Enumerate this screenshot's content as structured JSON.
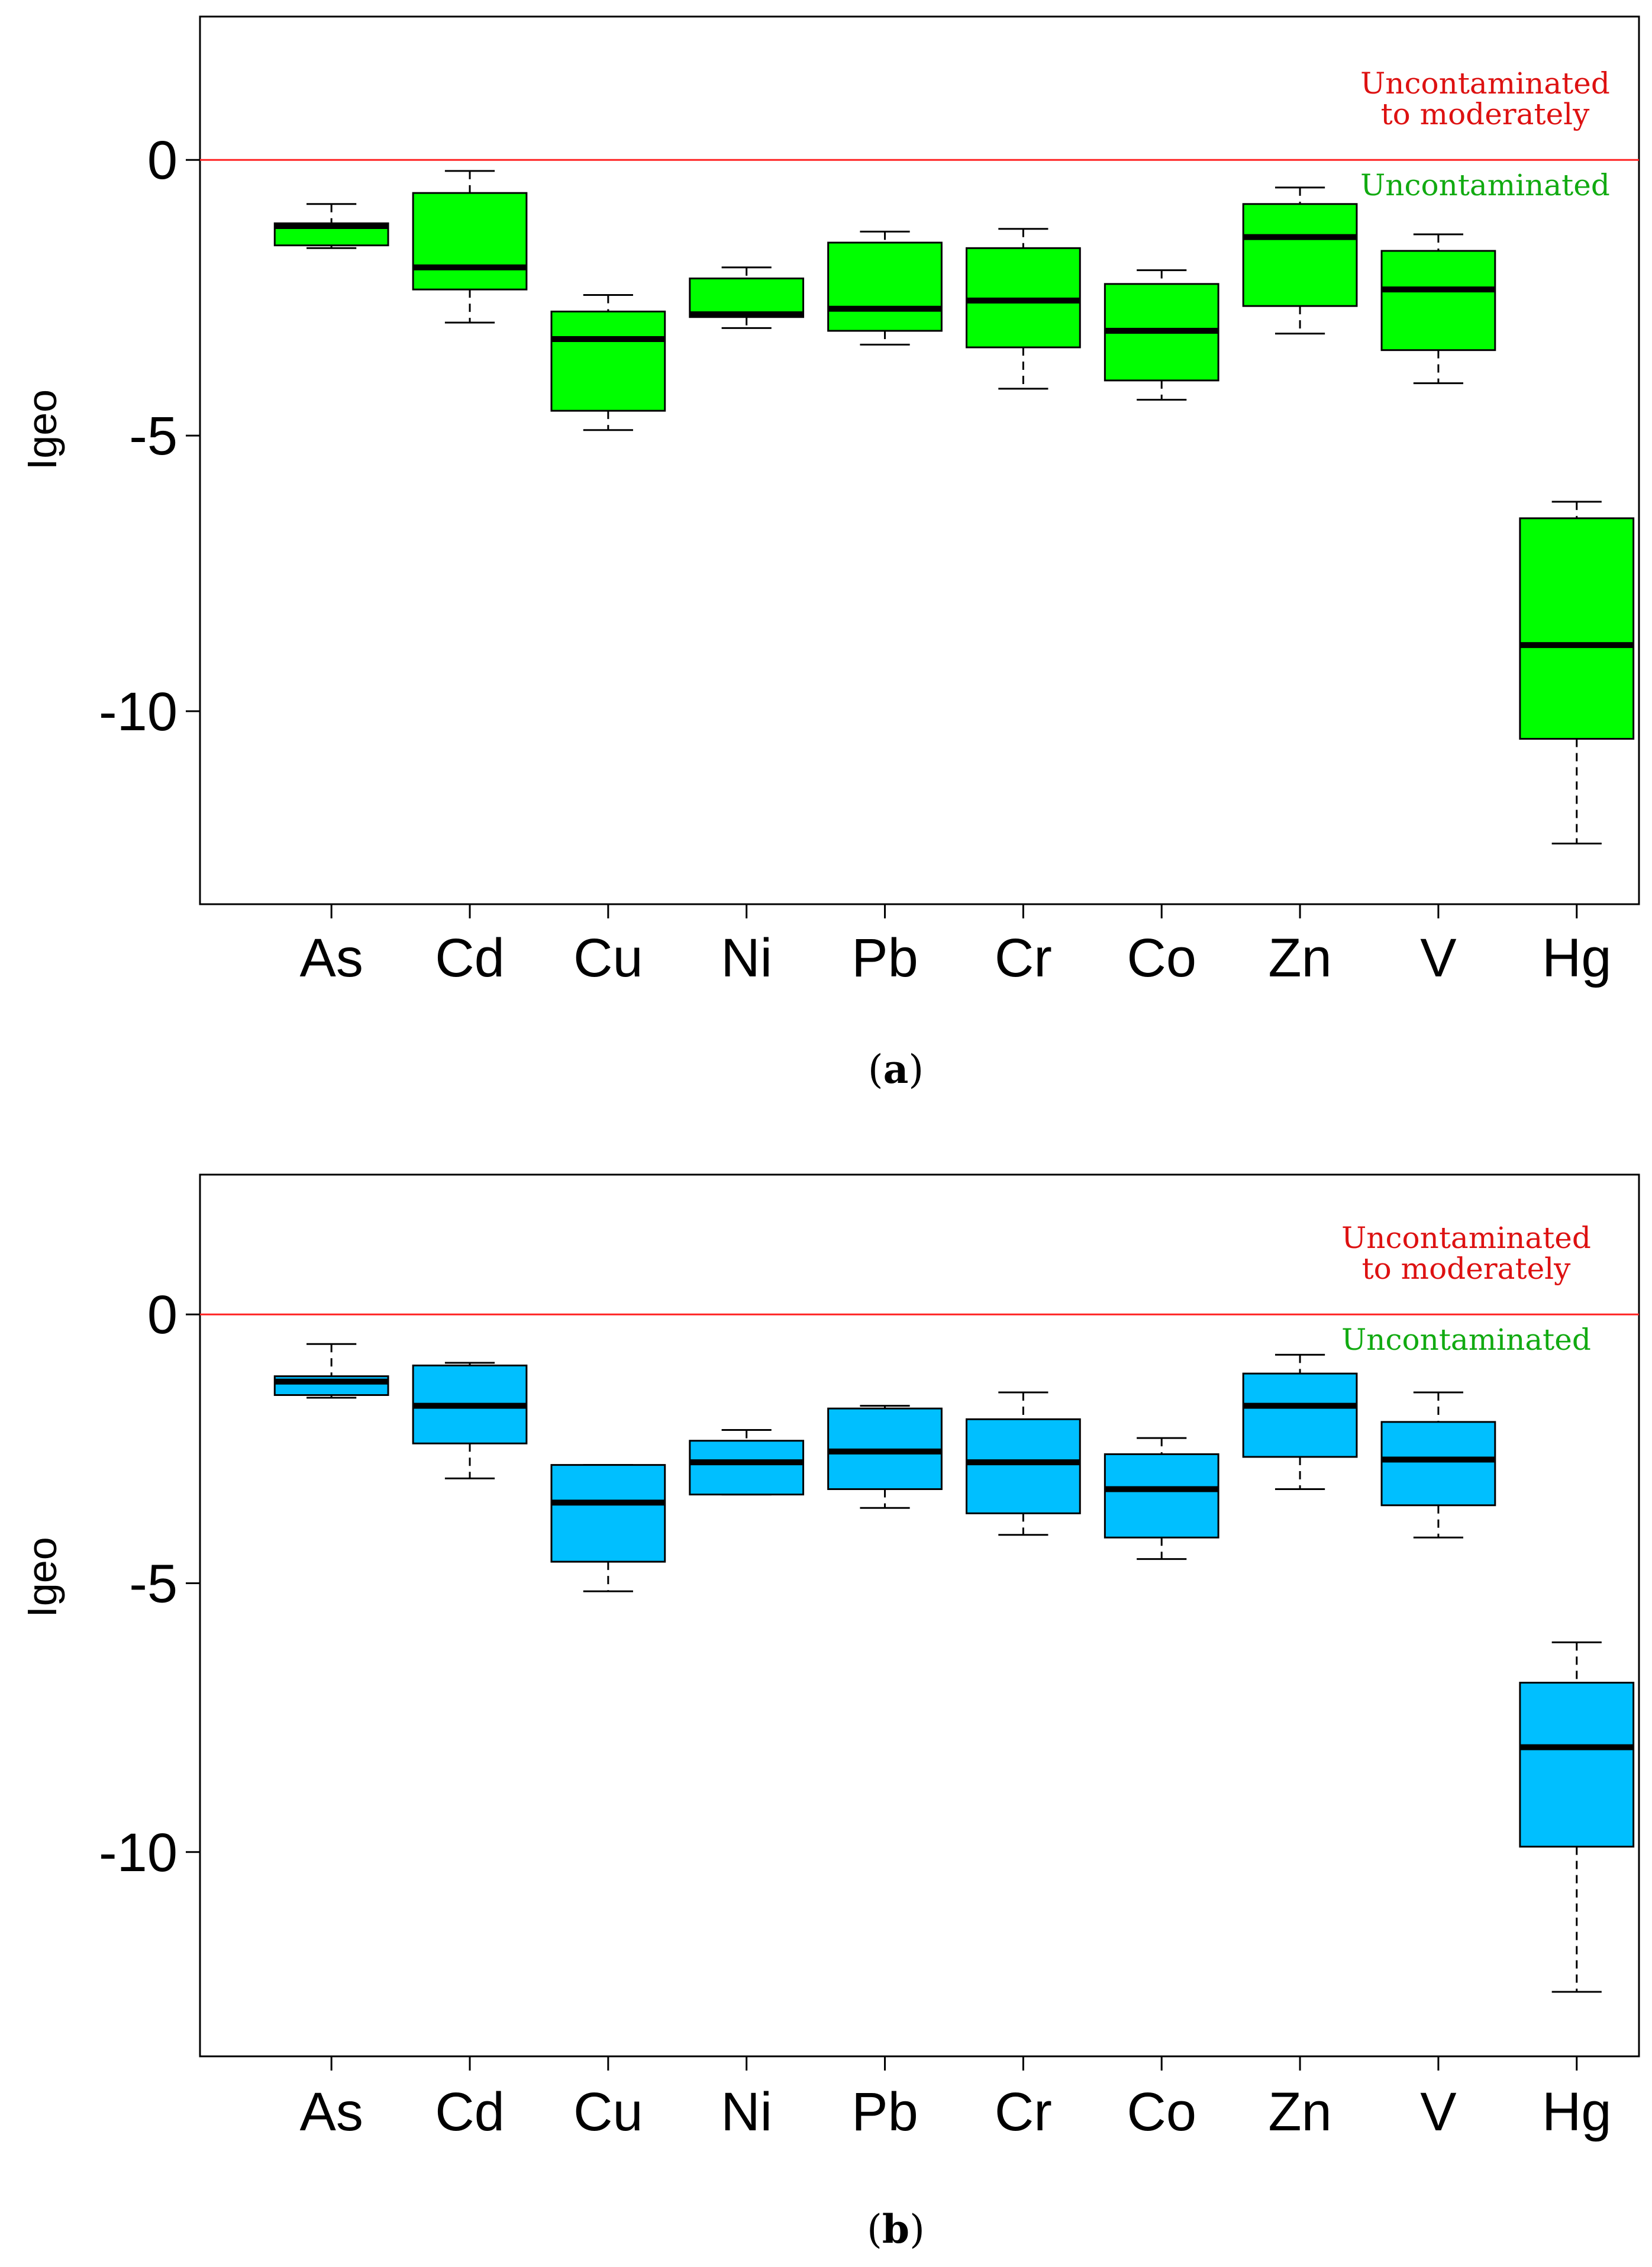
{
  "colors": {
    "threshold": "#ff2222",
    "annotation_upper": "#dd1111",
    "annotation_lower": "#11aa11",
    "panel_a_box": "#00ff00",
    "panel_b_box": "#00bfff",
    "axis": "#000000"
  },
  "chart_data": [
    {
      "type": "box",
      "panel_label": "a",
      "ylabel": "Igeo",
      "xlabel": "",
      "ylim": [
        -13.5,
        2.6
      ],
      "yticks": [
        0,
        -5,
        -10
      ],
      "ytick_labels": [
        "0",
        "-5",
        "-10"
      ],
      "categories": [
        "As",
        "Cd",
        "Cu",
        "Ni",
        "Pb",
        "Cr",
        "Co",
        "Zn",
        "V",
        "Hg"
      ],
      "threshold": {
        "value": 0,
        "color": "#ff2222"
      },
      "annotations": {
        "upper": [
          "Uncontaminated",
          "to moderately"
        ],
        "lower": "Uncontaminated"
      },
      "box_color": "#00ff00",
      "boxes": [
        {
          "name": "As",
          "whisker_low": -1.6,
          "q1": -1.55,
          "median": -1.2,
          "q3": -1.15,
          "whisker_high": -0.8
        },
        {
          "name": "Cd",
          "whisker_low": -2.95,
          "q1": -2.35,
          "median": -1.95,
          "q3": -0.6,
          "whisker_high": -0.2
        },
        {
          "name": "Cu",
          "whisker_low": -4.9,
          "q1": -4.55,
          "median": -3.25,
          "q3": -2.75,
          "whisker_high": -2.45
        },
        {
          "name": "Ni",
          "whisker_low": -3.05,
          "q1": -2.85,
          "median": -2.8,
          "q3": -2.15,
          "whisker_high": -1.95
        },
        {
          "name": "Pb",
          "whisker_low": -3.35,
          "q1": -3.1,
          "median": -2.7,
          "q3": -1.5,
          "whisker_high": -1.3
        },
        {
          "name": "Cr",
          "whisker_low": -4.15,
          "q1": -3.4,
          "median": -2.55,
          "q3": -1.6,
          "whisker_high": -1.25
        },
        {
          "name": "Co",
          "whisker_low": -4.35,
          "q1": -4.0,
          "median": -3.1,
          "q3": -2.25,
          "whisker_high": -2.0
        },
        {
          "name": "Zn",
          "whisker_low": -3.15,
          "q1": -2.65,
          "median": -1.4,
          "q3": -0.8,
          "whisker_high": -0.5
        },
        {
          "name": "V",
          "whisker_low": -4.05,
          "q1": -3.45,
          "median": -2.35,
          "q3": -1.65,
          "whisker_high": -1.35
        },
        {
          "name": "Hg",
          "whisker_low": -12.4,
          "q1": -10.5,
          "median": -8.8,
          "q3": -6.5,
          "whisker_high": -6.2
        }
      ]
    },
    {
      "type": "box",
      "panel_label": "b",
      "ylabel": "Igeo",
      "xlabel": "",
      "ylim": [
        -13.8,
        2.6
      ],
      "yticks": [
        0,
        -5,
        -10
      ],
      "ytick_labels": [
        "0",
        "-5",
        "-10"
      ],
      "categories": [
        "As",
        "Cd",
        "Cu",
        "Ni",
        "Pb",
        "Cr",
        "Co",
        "Zn",
        "V",
        "Hg"
      ],
      "threshold": {
        "value": 0,
        "color": "#ff2222"
      },
      "annotations": {
        "upper": [
          "Uncontaminated",
          "to moderately"
        ],
        "lower": "Uncontaminated"
      },
      "box_color": "#00bfff",
      "boxes": [
        {
          "name": "As",
          "whisker_low": -1.55,
          "q1": -1.5,
          "median": -1.25,
          "q3": -1.15,
          "whisker_high": -0.55
        },
        {
          "name": "Cd",
          "whisker_low": -3.05,
          "q1": -2.4,
          "median": -1.7,
          "q3": -0.95,
          "whisker_high": -0.9
        },
        {
          "name": "Cu",
          "whisker_low": -5.15,
          "q1": -4.6,
          "median": -3.5,
          "q3": -2.8,
          "whisker_high": -2.8
        },
        {
          "name": "Ni",
          "whisker_low": -3.35,
          "q1": -3.35,
          "median": -2.75,
          "q3": -2.35,
          "whisker_high": -2.15
        },
        {
          "name": "Pb",
          "whisker_low": -3.6,
          "q1": -3.25,
          "median": -2.55,
          "q3": -1.75,
          "whisker_high": -1.7
        },
        {
          "name": "Cr",
          "whisker_low": -4.1,
          "q1": -3.7,
          "median": -2.75,
          "q3": -1.95,
          "whisker_high": -1.45
        },
        {
          "name": "Co",
          "whisker_low": -4.55,
          "q1": -4.15,
          "median": -3.25,
          "q3": -2.6,
          "whisker_high": -2.3
        },
        {
          "name": "Zn",
          "whisker_low": -3.25,
          "q1": -2.65,
          "median": -1.7,
          "q3": -1.1,
          "whisker_high": -0.75
        },
        {
          "name": "V",
          "whisker_low": -4.15,
          "q1": -3.55,
          "median": -2.7,
          "q3": -2.0,
          "whisker_high": -1.45
        },
        {
          "name": "Hg",
          "whisker_low": -12.6,
          "q1": -9.9,
          "median": -8.05,
          "q3": -6.85,
          "whisker_high": -6.1
        }
      ]
    }
  ]
}
